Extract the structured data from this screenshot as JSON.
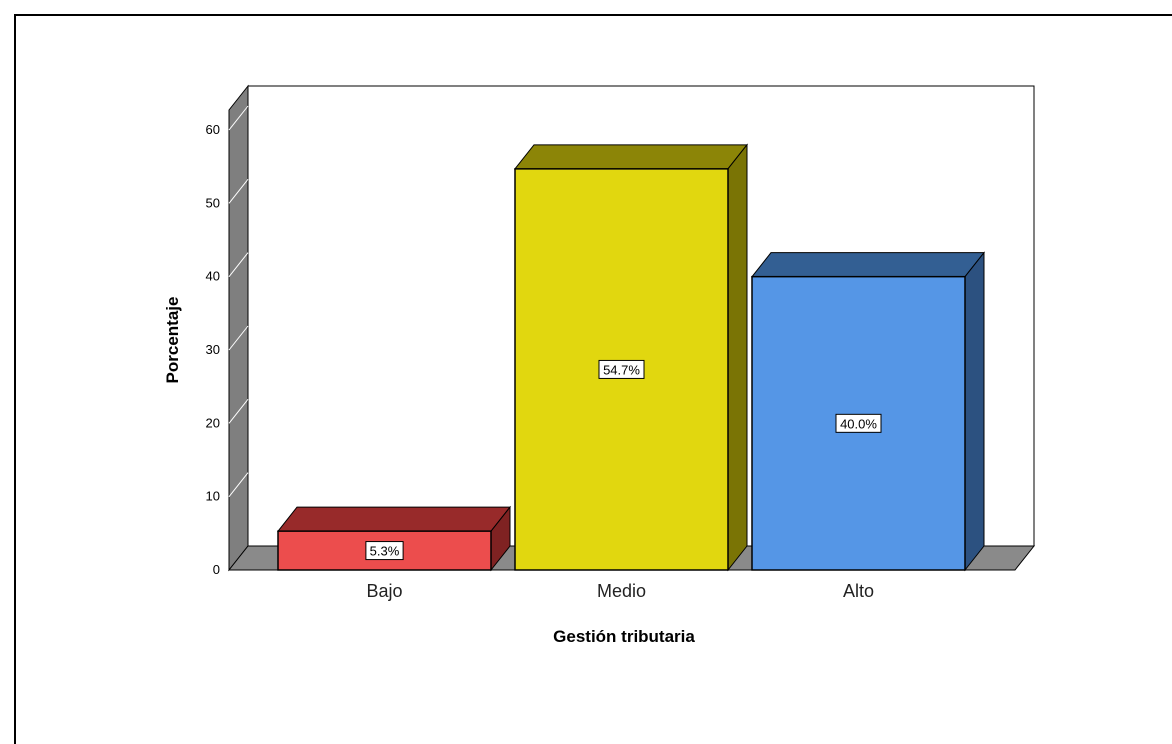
{
  "chart_data": {
    "type": "bar",
    "categories": [
      "Bajo",
      "Medio",
      "Alto"
    ],
    "values": [
      5.3,
      54.7,
      40.0
    ],
    "data_labels": [
      "5.3%",
      "54.7%",
      "40.0%"
    ],
    "xlabel": "Gestión tributaria",
    "ylabel": "Porcentaje",
    "ylim": [
      0,
      60
    ],
    "yticks": [
      "0",
      "10",
      "20",
      "30",
      "40",
      "50",
      "60"
    ],
    "grid": false,
    "style": "3d",
    "colors": {
      "Bajo": {
        "front": "#ec4d4d",
        "top": "#982a2a",
        "side": "#7f2222"
      },
      "Medio": {
        "front": "#e1d70f",
        "top": "#8c8507",
        "side": "#7a7405"
      },
      "Alto": {
        "front": "#5596e6",
        "top": "#335f93",
        "side": "#2c5180"
      },
      "wall_side": "#7f7f7f",
      "floor": "#8a8a8a"
    }
  }
}
